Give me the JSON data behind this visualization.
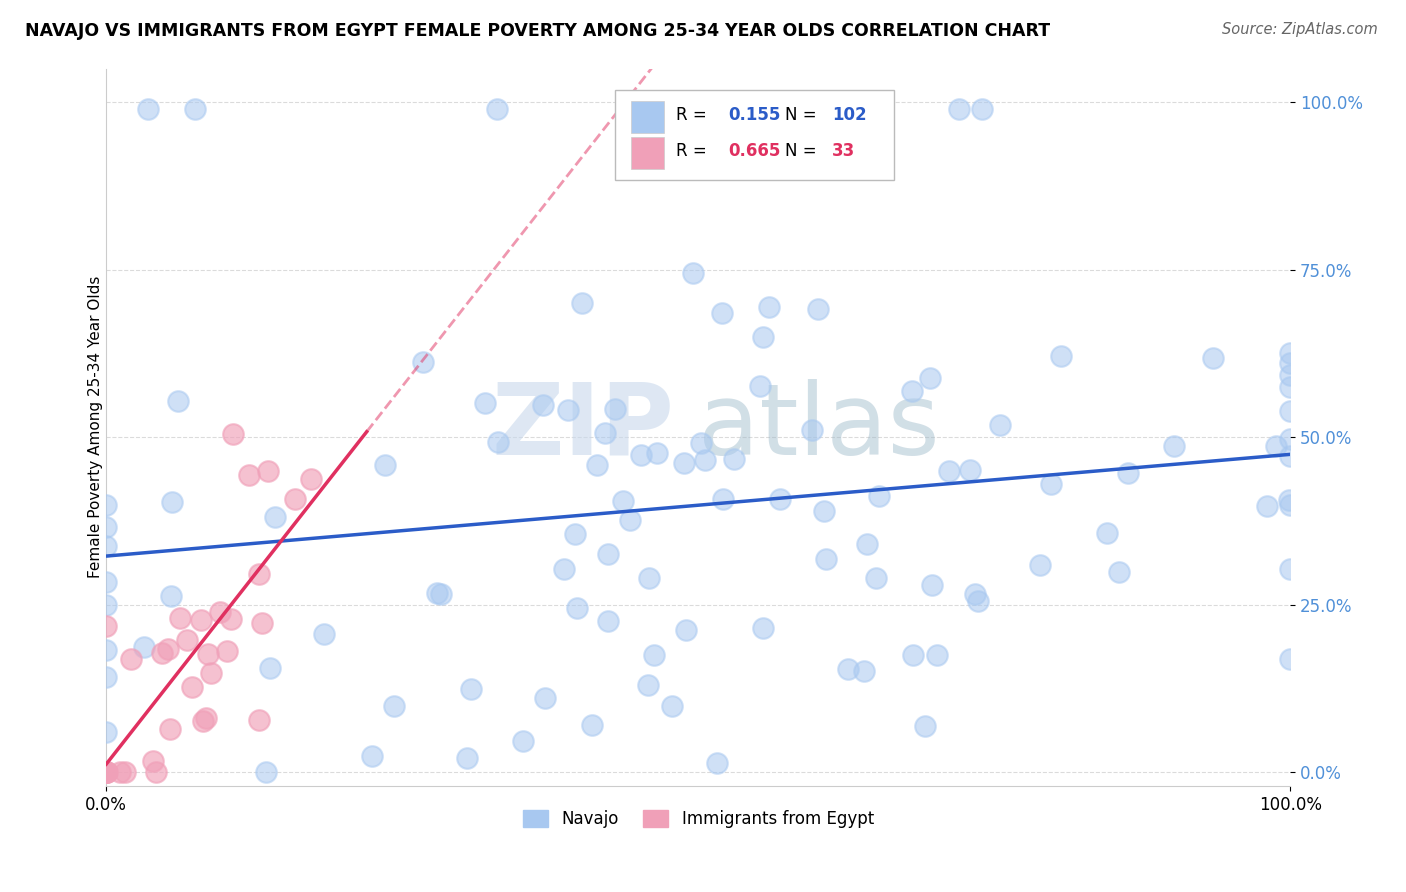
{
  "title": "NAVAJO VS IMMIGRANTS FROM EGYPT FEMALE POVERTY AMONG 25-34 YEAR OLDS CORRELATION CHART",
  "source": "Source: ZipAtlas.com",
  "ylabel": "Female Poverty Among 25-34 Year Olds",
  "R1": 0.155,
  "N1": 102,
  "R2": 0.665,
  "N2": 33,
  "color1": "#A8C8F0",
  "color2": "#F0A0B8",
  "line_color1": "#2B5CC8",
  "line_color2": "#E03060",
  "legend_label1": "Navajo",
  "legend_label2": "Immigrants from Egypt",
  "ytick_color": "#5090D8",
  "watermark_zip_color": "#C8D8EC",
  "watermark_atlas_color": "#9BB8C8"
}
